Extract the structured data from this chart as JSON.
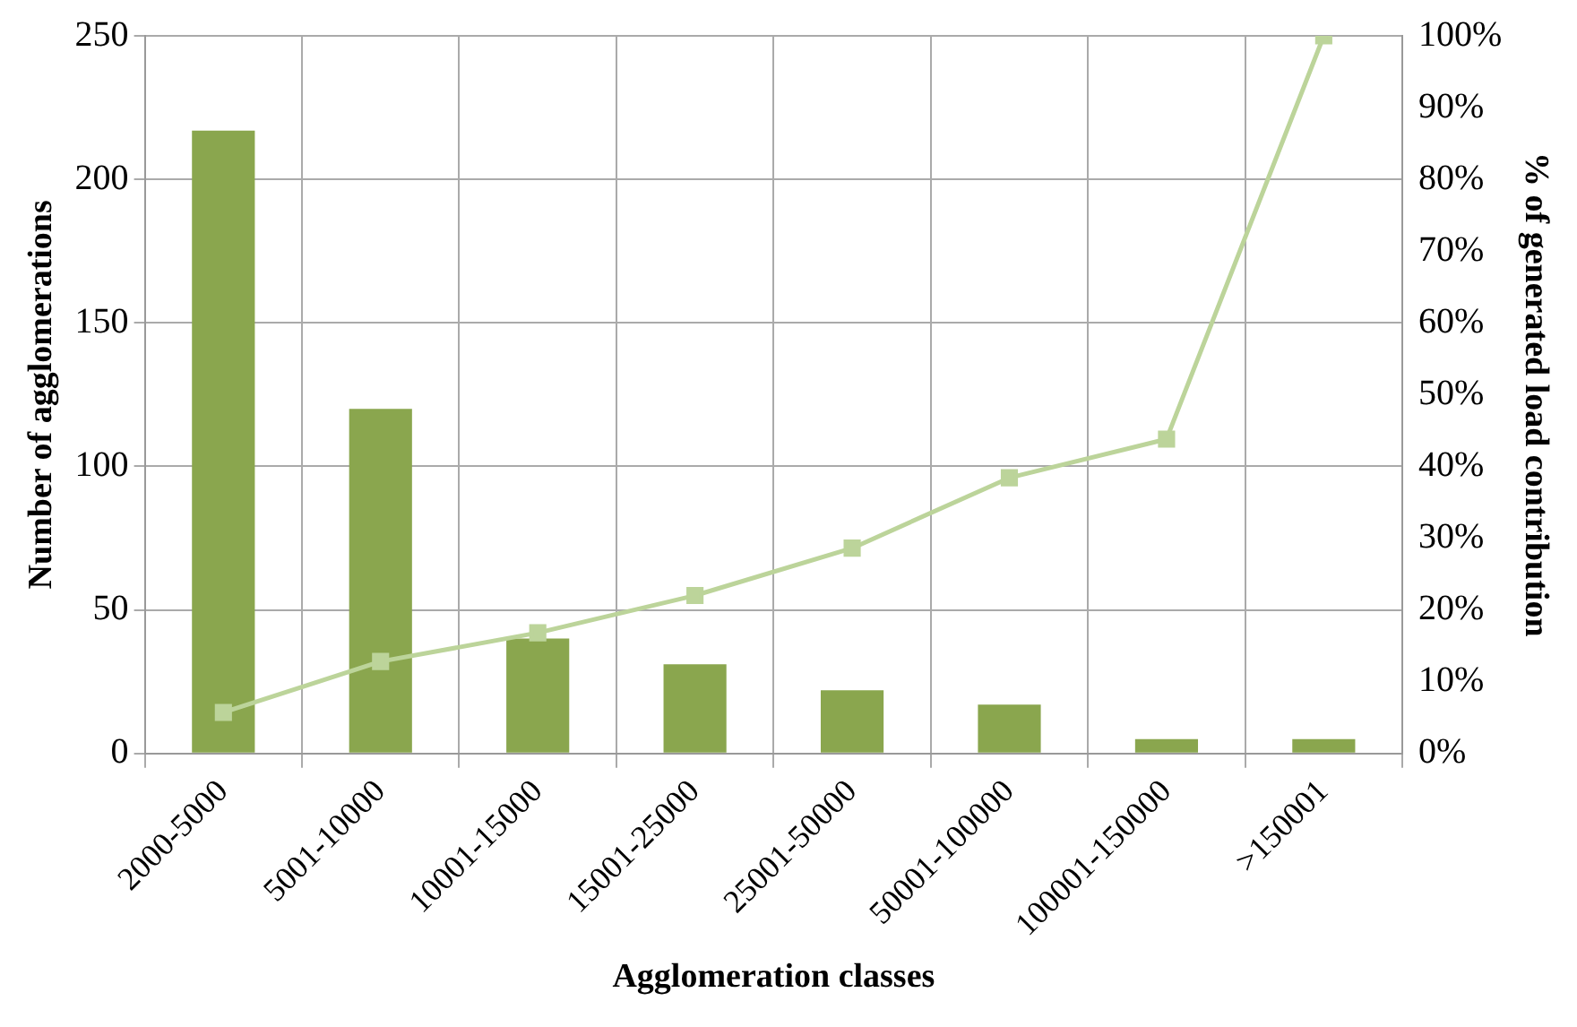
{
  "chart_data": {
    "type": "bar",
    "xlabel": "Agglomeration classes",
    "ylabel": "Number of agglomerations",
    "y2label": "% of generated load contribution",
    "categories": [
      "2000-5000",
      "5001-10000",
      "10001-15000",
      "15001-25000",
      "25001-50000",
      "50001-100000",
      "100001-150000",
      ">150001"
    ],
    "series": [
      {
        "color": "#8aa64e",
        "values": [
          217,
          120,
          40,
          31,
          22,
          17,
          5,
          5
        ]
      },
      {
        "type": "line",
        "axis": "y2",
        "color": "#bcd49a",
        "marker": "square",
        "values": [
          5.7,
          12.8,
          16.8,
          22,
          28.6,
          38.4,
          43.8,
          100
        ]
      }
    ],
    "ylim": [
      0,
      250
    ],
    "yticks": [
      0,
      50,
      100,
      150,
      200,
      250
    ],
    "y2lim": [
      0,
      100
    ],
    "y2ticks": [
      {
        "value": 0,
        "label": "0%"
      },
      {
        "value": 10,
        "label": "10%"
      },
      {
        "value": 20,
        "label": "20%"
      },
      {
        "value": 30,
        "label": "30%"
      },
      {
        "value": 40,
        "label": "40%"
      },
      {
        "value": 50,
        "label": "50%"
      },
      {
        "value": 60,
        "label": "60%"
      },
      {
        "value": 70,
        "label": "70%"
      },
      {
        "value": 80,
        "label": "80%"
      },
      {
        "value": 90,
        "label": "90%"
      },
      {
        "value": 100,
        "label": "100%"
      }
    ],
    "grid": true
  }
}
